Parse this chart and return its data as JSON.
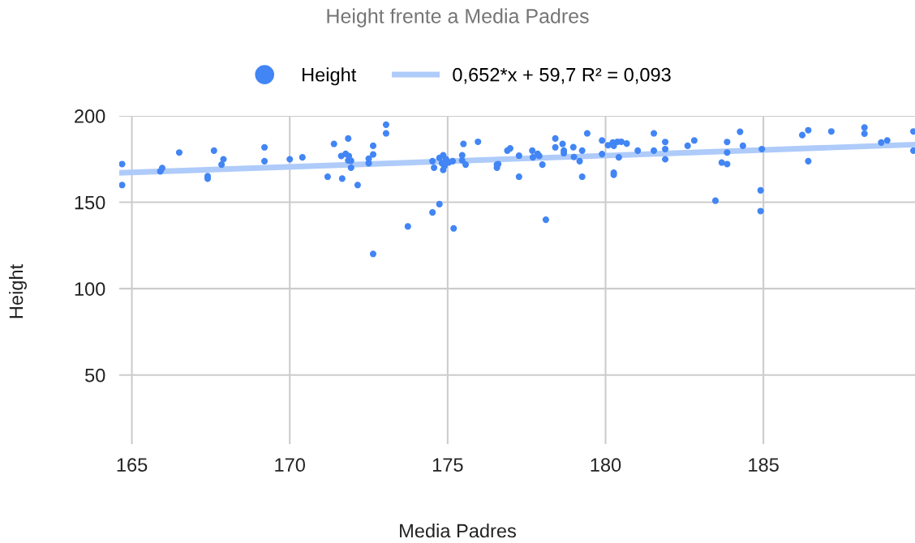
{
  "chart_data": {
    "type": "scatter",
    "title": "Height frente a Media Padres",
    "xlabel": "Media Padres",
    "ylabel": "Height",
    "xlim": [
      164.6,
      189.8
    ],
    "xticks": [
      165,
      170,
      175,
      180,
      185
    ],
    "ylim": [
      10,
      200
    ],
    "yticks": [
      50,
      100,
      150,
      200
    ],
    "grid": true,
    "legend": "top",
    "marker": "circle",
    "series": [
      {
        "name": "Height",
        "color": "#4285f4",
        "x": [
          164.69,
          164.69,
          165.9,
          165.96,
          166.5,
          167.4,
          167.4,
          167.6,
          167.84,
          167.9,
          169.2,
          169.2,
          170.0,
          170.4,
          171.2,
          171.4,
          171.66,
          171.63,
          171.77,
          171.87,
          171.85,
          171.85,
          171.94,
          171.94,
          172.15,
          172.5,
          172.5,
          172.64,
          172.64,
          172.64,
          173.05,
          173.05,
          173.74,
          174.52,
          174.74,
          175.19,
          174.52,
          174.57,
          174.74,
          174.86,
          174.95,
          174.82,
          174.9,
          174.86,
          175.03,
          175.16,
          175.46,
          175.46,
          175.57,
          175.5,
          175.96,
          176.56,
          176.56,
          176.6,
          176.89,
          176.98,
          177.26,
          177.26,
          177.68,
          177.7,
          177.85,
          177.9,
          178.0,
          178.11,
          178.41,
          178.41,
          178.64,
          178.68,
          178.68,
          178.98,
          179.0,
          179.18,
          179.26,
          179.26,
          179.42,
          179.89,
          179.89,
          180.08,
          180.23,
          180.26,
          180.38,
          180.5,
          180.67,
          180.26,
          180.26,
          180.42,
          181.02,
          181.53,
          181.53,
          181.89,
          181.89,
          181.89,
          182.6,
          182.81,
          183.48,
          183.68,
          183.85,
          183.85,
          183.85,
          184.26,
          184.35,
          184.95,
          184.91,
          184.91,
          186.23,
          186.42,
          186.42,
          187.15,
          188.2,
          188.2,
          188.73,
          188.92,
          189.75,
          189.75
        ],
        "values": [
          172.1,
          160,
          167.9,
          169.8,
          178.8,
          165.1,
          163.7,
          179.9,
          171.8,
          174.9,
          181.8,
          173.8,
          174.9,
          176,
          164.8,
          183.8,
          163.7,
          176.8,
          178,
          176.8,
          186.9,
          174.2,
          174,
          170,
          160,
          172.6,
          175.2,
          177.7,
          182.7,
          120.1,
          194.9,
          189.9,
          136,
          144.1,
          148.9,
          134.9,
          173.8,
          170,
          175.7,
          177.2,
          174.9,
          172.6,
          171,
          168.7,
          173,
          173.8,
          177.2,
          174.2,
          171.8,
          183.8,
          185,
          171.8,
          170,
          172.1,
          179.9,
          181.2,
          177,
          164.8,
          179.9,
          176,
          178,
          176.8,
          171.8,
          139.9,
          186.9,
          181.8,
          183.8,
          179.9,
          178.4,
          181.9,
          176.2,
          173.8,
          179.9,
          164.8,
          189.9,
          185.8,
          177.9,
          183,
          184.6,
          182.7,
          185,
          185,
          184,
          167.1,
          165.9,
          176,
          179.9,
          189.9,
          179.9,
          184.9,
          180.8,
          174.9,
          182.7,
          185.8,
          150.9,
          173,
          172.1,
          184.9,
          178.8,
          190.8,
          182.7,
          180.8,
          156.9,
          144.9,
          188.9,
          191.7,
          173.8,
          191,
          193.3,
          189.7,
          184.6,
          185.8,
          191,
          179.9
        ]
      },
      {
        "name": "0,652*x + 59,7 R² = 0,093",
        "type": "line",
        "color": "#aecbfa",
        "marker": "none",
        "line_style": "solid",
        "x": [
          164.6,
          189.8
        ],
        "values": [
          167.0,
          183.4
        ]
      }
    ]
  }
}
